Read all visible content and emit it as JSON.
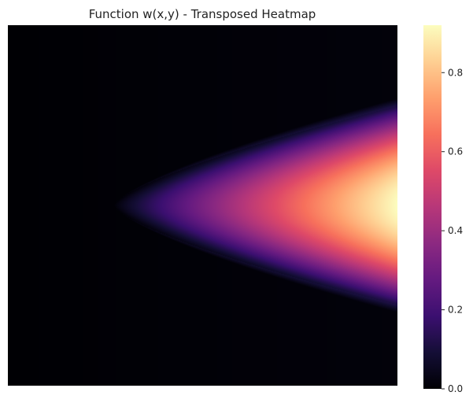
{
  "chart_data": {
    "type": "heatmap",
    "title": "Function w(x,y) - Transposed Heatmap",
    "colormap": "magma",
    "axes_visible": false,
    "grid": false,
    "colorbar": {
      "placement": "right",
      "vmin": 0.0,
      "vmax": 0.92,
      "ticks": [
        0.0,
        0.2,
        0.4,
        0.6,
        0.8
      ],
      "tick_labels": [
        "0.0",
        "0.2",
        "0.4",
        "0.6",
        "0.8"
      ]
    },
    "field": {
      "shape": "wedge opening to the right",
      "apex_x_fraction": 0.27,
      "center_y_fraction": 0.5,
      "half_width_at_right_edge_fraction": 0.3,
      "peak_value": 0.92,
      "background_value": 0.0
    }
  }
}
